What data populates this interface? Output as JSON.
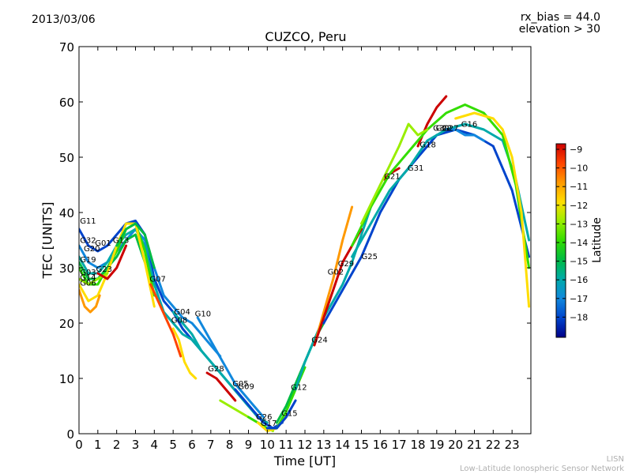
{
  "header": {
    "date": "2013/03/06",
    "rx_bias": "rx_bias = 44.0",
    "elevation": "elevation > 30"
  },
  "footer": {
    "credit_short": "LISN",
    "credit_long": "Low-Latitude Ionospheric Sensor Network"
  },
  "colorbar": {
    "label": "Latitude",
    "ticks": [
      "−9",
      "−10",
      "−11",
      "−12",
      "−13",
      "−14",
      "−15",
      "−16",
      "−17",
      "−18"
    ],
    "colors": [
      "#cc0000",
      "#ff4400",
      "#ff9900",
      "#ffdd00",
      "#99ee00",
      "#33dd00",
      "#00bb44",
      "#00aaaa",
      "#1188dd",
      "#0044cc",
      "#000088"
    ]
  },
  "chart_data": {
    "type": "line",
    "title": "CUZCO, Peru",
    "xlabel": "Time [UT]",
    "ylabel": "TEC [UNITS]",
    "xlim": [
      0,
      24
    ],
    "ylim": [
      0,
      70
    ],
    "xticks": [
      "0",
      "1",
      "2",
      "3",
      "4",
      "5",
      "6",
      "7",
      "8",
      "9",
      "10",
      "11",
      "12",
      "13",
      "14",
      "15",
      "16",
      "17",
      "18",
      "19",
      "20",
      "21",
      "22",
      "23"
    ],
    "yticks": [
      "0",
      "10",
      "20",
      "30",
      "40",
      "50",
      "60",
      "70"
    ],
    "series": [
      {
        "name": "G11",
        "color": "#0044cc",
        "x": [
          0,
          0.5,
          1,
          1.5,
          2,
          2.5,
          3,
          3.5,
          4,
          4.5,
          5,
          5.5,
          6,
          6.5
        ],
        "y": [
          37,
          34,
          33,
          34,
          36,
          38,
          38.5,
          36,
          28,
          24,
          22,
          19,
          17,
          15
        ]
      },
      {
        "name": "G32",
        "color": "#1188dd",
        "x": [
          0,
          0.5,
          1,
          1.5,
          2,
          2.5,
          3,
          3.5,
          4,
          4.5,
          5,
          5.5,
          6,
          6.5,
          7,
          7.5
        ],
        "y": [
          34,
          31,
          30,
          31,
          33,
          35,
          37,
          35,
          30,
          25,
          23,
          21,
          20,
          18,
          16,
          14
        ]
      },
      {
        "name": "G20",
        "color": "#00aaaa",
        "x": [
          0,
          0.5,
          1,
          1.5,
          2,
          2.5,
          3,
          3.5,
          4,
          4.5,
          5,
          5.5,
          6,
          6.5,
          7,
          7.5,
          8,
          8.5,
          9,
          9.5,
          10
        ],
        "y": [
          32,
          29,
          29,
          31,
          34,
          36,
          37,
          34,
          27,
          22,
          20,
          18,
          17,
          15,
          13,
          11,
          9,
          7,
          5,
          3,
          2
        ]
      },
      {
        "name": "G01",
        "color": "#33dd00",
        "x": [
          0,
          0.5,
          1,
          1.5,
          2,
          2.5,
          3,
          3.5,
          4
        ],
        "y": [
          30,
          27,
          27,
          30,
          33,
          37,
          38,
          33,
          25
        ]
      },
      {
        "name": "G19",
        "color": "#00bb44",
        "x": [
          0,
          0.5,
          1,
          1.5,
          2,
          2.5,
          3,
          3.5
        ],
        "y": [
          31,
          28,
          28,
          30,
          32,
          35,
          36,
          31
        ]
      },
      {
        "name": "G03",
        "color": "#ffdd00",
        "x": [
          0,
          0.5,
          1,
          1.5,
          2,
          2.5,
          3,
          3.5,
          4
        ],
        "y": [
          27,
          24,
          25,
          29,
          34,
          38,
          38,
          31,
          23
        ]
      },
      {
        "name": "G06",
        "color": "#ff9900",
        "x": [
          0,
          0.3,
          0.6,
          0.9,
          1.1
        ],
        "y": [
          26,
          23,
          22,
          23,
          25
        ]
      },
      {
        "name": "G14",
        "color": "#99ee00",
        "x": [
          0,
          0.5,
          1,
          1.5
        ],
        "y": [
          28,
          27,
          28,
          29
        ]
      },
      {
        "name": "G23",
        "color": "#cc0000",
        "x": [
          1,
          1.5,
          2,
          2.5
        ],
        "y": [
          29,
          28,
          30,
          34
        ]
      },
      {
        "name": "G13",
        "color": "#00bb44",
        "x": [
          2,
          2.5,
          3,
          3.5,
          4
        ],
        "y": [
          34,
          37,
          38,
          36,
          30
        ]
      },
      {
        "name": "G07",
        "color": "#ff4400",
        "x": [
          3.8,
          4.2,
          4.6,
          5,
          5.4
        ],
        "y": [
          27,
          24,
          21,
          18,
          14
        ]
      },
      {
        "name": "G04",
        "color": "#00aaaa",
        "x": [
          5,
          5.5,
          6,
          6.5,
          7,
          7.5,
          8,
          8.5,
          9
        ],
        "y": [
          22,
          20,
          18,
          15,
          13,
          11,
          9,
          7,
          5
        ]
      },
      {
        "name": "G08",
        "color": "#ffdd00",
        "x": [
          5,
          5.3,
          5.6,
          5.9,
          6.2
        ],
        "y": [
          19,
          17,
          13,
          11,
          10
        ]
      },
      {
        "name": "G10",
        "color": "#1188dd",
        "x": [
          6.3,
          6.8,
          7.3,
          7.8,
          8.3,
          8.8,
          9.3,
          9.8
        ],
        "y": [
          21,
          18,
          15,
          12,
          9,
          7,
          5,
          3
        ]
      },
      {
        "name": "G28",
        "color": "#cc0000",
        "x": [
          6.8,
          7.3,
          7.8,
          8.3
        ],
        "y": [
          11,
          10,
          8,
          6
        ]
      },
      {
        "name": "G05",
        "color": "#99ee00",
        "x": [
          7.5,
          8,
          8.5,
          9,
          9.5,
          10,
          10.3
        ],
        "y": [
          6,
          5,
          4,
          3,
          2,
          1,
          0.5
        ]
      },
      {
        "name": "G09",
        "color": "#0044cc",
        "x": [
          8.3,
          8.8,
          9.3,
          9.8,
          10.3,
          10.8
        ],
        "y": [
          8,
          6,
          4,
          2,
          1,
          2
        ]
      },
      {
        "name": "G26",
        "color": "#33dd00",
        "x": [
          9,
          9.5,
          10,
          10.5,
          11,
          11.5,
          12
        ],
        "y": [
          3,
          2,
          1,
          1,
          4,
          8,
          12
        ]
      },
      {
        "name": "G17",
        "color": "#ffdd00",
        "x": [
          9.5,
          10,
          10.5,
          11
        ],
        "y": [
          2,
          0.5,
          1,
          3
        ]
      },
      {
        "name": "G15",
        "color": "#0044cc",
        "x": [
          10,
          10.5,
          11,
          11.5
        ],
        "y": [
          1,
          1,
          3,
          6
        ]
      },
      {
        "name": "G12",
        "color": "#00bb44",
        "x": [
          10.5,
          11,
          11.5,
          12,
          12.5,
          13
        ],
        "y": [
          2,
          5,
          9,
          13,
          17,
          20
        ]
      },
      {
        "name": "G24",
        "color": "#00aaaa",
        "x": [
          11.5,
          12,
          12.5,
          13,
          13.5,
          14,
          14.5,
          15,
          15.5
        ],
        "y": [
          8,
          13,
          17,
          21,
          24,
          27,
          31,
          36,
          41
        ]
      },
      {
        "name": "G02",
        "color": "#ff9900",
        "x": [
          12.5,
          13,
          13.5,
          14,
          14.5
        ],
        "y": [
          16,
          22,
          28,
          35,
          41
        ]
      },
      {
        "name": "G29",
        "color": "#cc0000",
        "x": [
          12.5,
          13,
          13.5,
          14,
          14.5,
          15
        ],
        "y": [
          16,
          21,
          26,
          31,
          34,
          37
        ]
      },
      {
        "name": "G25",
        "color": "#0044cc",
        "x": [
          13,
          14,
          15,
          16,
          17,
          18,
          19,
          20,
          21,
          22,
          23,
          23.9
        ],
        "y": [
          20,
          26,
          32,
          40,
          46,
          50,
          54,
          55,
          54,
          52,
          44,
          32
        ]
      },
      {
        "name": "G21",
        "color": "#cc0000",
        "x": [
          16.2,
          16.5,
          17
        ],
        "y": [
          46,
          47,
          48
        ]
      },
      {
        "name": "G31",
        "color": "#00aaaa",
        "x": [
          14.5,
          15.5,
          16.5,
          17.5,
          18.5,
          19.5,
          20.5,
          21.5,
          22.5,
          23.2,
          23.9
        ],
        "y": [
          32,
          38,
          44,
          48,
          53,
          55,
          56,
          55,
          53,
          46,
          35
        ]
      },
      {
        "name": "G18",
        "color": "#cc0000",
        "x": [
          18,
          18.5,
          19,
          19.5
        ],
        "y": [
          52,
          56,
          59,
          61
        ]
      },
      {
        "name": "G22",
        "color": "#33dd00",
        "x": [
          14.5,
          15.5,
          16.5,
          17.5,
          18.5,
          19.5,
          20.5,
          21.5,
          22.5,
          23.2,
          23.9
        ],
        "y": [
          34,
          41,
          47,
          51,
          55,
          58,
          59.5,
          58,
          54,
          45,
          30
        ]
      },
      {
        "name": "G16",
        "color": "#99ee00",
        "x": [
          15,
          16,
          17,
          17.5,
          18,
          18.5
        ],
        "y": [
          38,
          45,
          52,
          56,
          54,
          55
        ]
      },
      {
        "name": "G27",
        "color": "#1188dd",
        "x": [
          19.5,
          20,
          20.5,
          21,
          21.5
        ],
        "y": [
          55,
          55,
          54,
          54,
          53
        ]
      },
      {
        "name": "G30",
        "color": "#ffdd00",
        "x": [
          20,
          21,
          22,
          22.5,
          23,
          23.5,
          23.9
        ],
        "y": [
          57,
          58,
          57,
          55,
          50,
          40,
          23
        ]
      }
    ],
    "labels": [
      {
        "text": "G11",
        "x": 0.05,
        "y": 38
      },
      {
        "text": "G32",
        "x": 0.05,
        "y": 34.5
      },
      {
        "text": "G20",
        "x": 0.25,
        "y": 33
      },
      {
        "text": "G01",
        "x": 0.85,
        "y": 34
      },
      {
        "text": "G19",
        "x": 0.05,
        "y": 31
      },
      {
        "text": "G13",
        "x": 1.8,
        "y": 34.5
      },
      {
        "text": "G03",
        "x": 0.05,
        "y": 28.7
      },
      {
        "text": "G23",
        "x": 0.9,
        "y": 29.3
      },
      {
        "text": "G14",
        "x": 0.05,
        "y": 27.8
      },
      {
        "text": "G06",
        "x": 0.05,
        "y": 26.8
      },
      {
        "text": "G07",
        "x": 3.75,
        "y": 27.5
      },
      {
        "text": "G04",
        "x": 5.05,
        "y": 21.6
      },
      {
        "text": "G08",
        "x": 4.9,
        "y": 20.1
      },
      {
        "text": "G10",
        "x": 6.15,
        "y": 21.2
      },
      {
        "text": "G28",
        "x": 6.85,
        "y": 11.3
      },
      {
        "text": "G05",
        "x": 8.15,
        "y": 8.6
      },
      {
        "text": "G09",
        "x": 8.45,
        "y": 8.1
      },
      {
        "text": "G26",
        "x": 9.4,
        "y": 2.6
      },
      {
        "text": "G17",
        "x": 9.65,
        "y": 1.4
      },
      {
        "text": "G15",
        "x": 10.75,
        "y": 3.2
      },
      {
        "text": "G12",
        "x": 11.25,
        "y": 7.9
      },
      {
        "text": "G24",
        "x": 12.35,
        "y": 16.5
      },
      {
        "text": "G02",
        "x": 13.2,
        "y": 28.8
      },
      {
        "text": "G29",
        "x": 13.75,
        "y": 30.3
      },
      {
        "text": "G25",
        "x": 15,
        "y": 31.6
      },
      {
        "text": "G21",
        "x": 16.2,
        "y": 46.1
      },
      {
        "text": "G31",
        "x": 17.45,
        "y": 47.6
      },
      {
        "text": "G18",
        "x": 18.1,
        "y": 51.8
      },
      {
        "text": "G30",
        "x": 18.8,
        "y": 54.8
      },
      {
        "text": "G22",
        "x": 18.95,
        "y": 54.8
      },
      {
        "text": "G27",
        "x": 19.3,
        "y": 54.8
      },
      {
        "text": "G16",
        "x": 20.3,
        "y": 55.5
      }
    ]
  }
}
